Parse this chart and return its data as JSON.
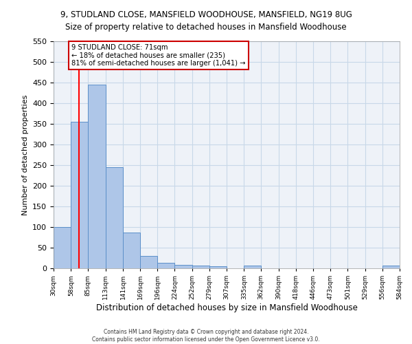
{
  "title_line1": "9, STUDLAND CLOSE, MANSFIELD WOODHOUSE, MANSFIELD, NG19 8UG",
  "title_line2": "Size of property relative to detached houses in Mansfield Woodhouse",
  "xlabel": "Distribution of detached houses by size in Mansfield Woodhouse",
  "ylabel": "Number of detached properties",
  "footnote": "Contains HM Land Registry data © Crown copyright and database right 2024.\nContains public sector information licensed under the Open Government Licence v3.0.",
  "bin_edges": [
    30,
    58,
    85,
    113,
    141,
    169,
    196,
    224,
    252,
    279,
    307,
    335,
    362,
    390,
    418,
    446,
    473,
    501,
    529,
    556,
    584
  ],
  "bar_heights": [
    100,
    355,
    445,
    245,
    87,
    30,
    14,
    9,
    6,
    5,
    0,
    6,
    0,
    0,
    0,
    0,
    0,
    0,
    0,
    6
  ],
  "bar_color": "#aec6e8",
  "bar_edge_color": "#5b8fc9",
  "grid_color": "#c8d8e8",
  "bg_color": "#eef2f8",
  "property_line_x": 71,
  "red_line_color": "#ff0000",
  "annotation_text": "9 STUDLAND CLOSE: 71sqm\n← 18% of detached houses are smaller (235)\n81% of semi-detached houses are larger (1,041) →",
  "annotation_box_color": "#ffffff",
  "annotation_box_edge": "#cc0000",
  "ylim": [
    0,
    550
  ],
  "yticks": [
    0,
    50,
    100,
    150,
    200,
    250,
    300,
    350,
    400,
    450,
    500,
    550
  ]
}
